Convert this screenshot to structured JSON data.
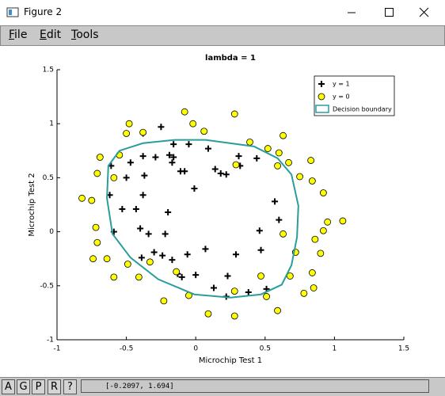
{
  "window": {
    "title": "Figure 2",
    "menu": [
      "File",
      "Edit",
      "Tools"
    ],
    "toolbar": [
      "A",
      "G",
      "P",
      "R",
      "?"
    ],
    "status": "[-0.2097, 1.694]"
  },
  "chart_data": {
    "type": "scatter",
    "title": "lambda = 1",
    "xlabel": "Microchip Test 1",
    "ylabel": "Microchip Test 2",
    "xlim": [
      -1,
      1.5
    ],
    "ylim": [
      -1,
      1.5
    ],
    "xticks": [
      -1,
      -0.5,
      0,
      0.5,
      1,
      1.5
    ],
    "yticks": [
      -1,
      -0.5,
      0,
      0.5,
      1,
      1.5
    ],
    "legend": "northeast",
    "series": [
      {
        "name": "y = 1",
        "marker": "plus",
        "color": "#000000",
        "x": [
          -0.25,
          -0.16,
          -0.29,
          -0.19,
          -0.05,
          -0.16,
          -0.17,
          -0.11,
          -0.08,
          -0.38,
          -0.47,
          -0.61,
          -0.5,
          -0.37,
          -0.38,
          -0.53,
          -0.43,
          -0.2,
          -0.01,
          0.14,
          0.18,
          0.22,
          0.31,
          0.32,
          0.44,
          0.57,
          0.6,
          0.46,
          -0.4,
          -0.34,
          -0.22,
          -0.3,
          -0.39,
          -0.24,
          -0.17,
          -0.06,
          -0.13,
          -0.1,
          0,
          0.07,
          0.29,
          0.47,
          0.23,
          0.13,
          0.22,
          0.38,
          0.51,
          -0.59,
          -0.62,
          0.09,
          -0.38
        ],
        "y": [
          0.97,
          0.81,
          0.69,
          0.71,
          0.81,
          0.69,
          0.64,
          0.56,
          0.56,
          0.7,
          0.64,
          0.61,
          0.5,
          0.52,
          0.34,
          0.21,
          0.21,
          0.18,
          0.4,
          0.58,
          0.54,
          0.53,
          0.7,
          0.61,
          0.68,
          0.28,
          0.11,
          0.01,
          0.03,
          -0.02,
          -0.02,
          -0.19,
          -0.24,
          -0.22,
          -0.26,
          -0.21,
          -0.39,
          -0.42,
          -0.4,
          -0.16,
          -0.21,
          -0.17,
          -0.41,
          -0.52,
          -0.6,
          -0.56,
          -0.53,
          0,
          0.34,
          0.77,
          0.91
        ]
      },
      {
        "name": "y = 0",
        "marker": "circle",
        "color": "#ffff00",
        "x": [
          -0.08,
          -0.48,
          -0.38,
          -0.5,
          -0.02,
          0.06,
          0.28,
          0.39,
          0.52,
          0.6,
          0.63,
          0.59,
          0.67,
          0.75,
          0.83,
          0.84,
          0.92,
          0.95,
          1.06,
          0.92,
          0.86,
          0.63,
          0.72,
          0.9,
          0.84,
          0.68,
          0.85,
          0.78,
          0.47,
          0.51,
          0.59,
          0.28,
          0.28,
          0.09,
          -0.05,
          -0.14,
          -0.23,
          -0.33,
          -0.41,
          -0.49,
          -0.59,
          -0.64,
          -0.71,
          -0.74,
          -0.72,
          -0.75,
          -0.82,
          -0.71,
          -0.69,
          -0.59,
          -0.55,
          0.29
        ],
        "y": [
          1.11,
          1,
          0.92,
          0.91,
          1,
          0.93,
          1.09,
          0.83,
          0.77,
          0.73,
          0.89,
          0.61,
          0.64,
          0.51,
          0.66,
          0.47,
          0.36,
          0.09,
          0.1,
          0.01,
          -0.07,
          -0.02,
          -0.19,
          -0.2,
          -0.38,
          -0.41,
          -0.52,
          -0.57,
          -0.41,
          -0.6,
          -0.73,
          -0.55,
          -0.78,
          -0.76,
          -0.59,
          -0.37,
          -0.64,
          -0.28,
          -0.42,
          -0.3,
          -0.42,
          -0.25,
          -0.1,
          -0.25,
          0.04,
          0.29,
          0.31,
          0.54,
          0.69,
          0.5,
          0.71,
          0.62
        ]
      },
      {
        "name": "Decision boundary",
        "marker": "line",
        "color": "#2a9d9d",
        "x": [
          0.07,
          0.42,
          0.59,
          0.69,
          0.74,
          0.73,
          0.69,
          0.62,
          0.47,
          0.25,
          -0.01,
          -0.27,
          -0.47,
          -0.6,
          -0.64,
          -0.63,
          -0.55,
          -0.38,
          -0.15,
          0.07
        ],
        "y": [
          0.85,
          0.79,
          0.68,
          0.53,
          0.24,
          -0.05,
          -0.31,
          -0.49,
          -0.58,
          -0.61,
          -0.58,
          -0.44,
          -0.24,
          -0.02,
          0.31,
          0.61,
          0.75,
          0.82,
          0.85,
          0.85
        ]
      }
    ]
  }
}
